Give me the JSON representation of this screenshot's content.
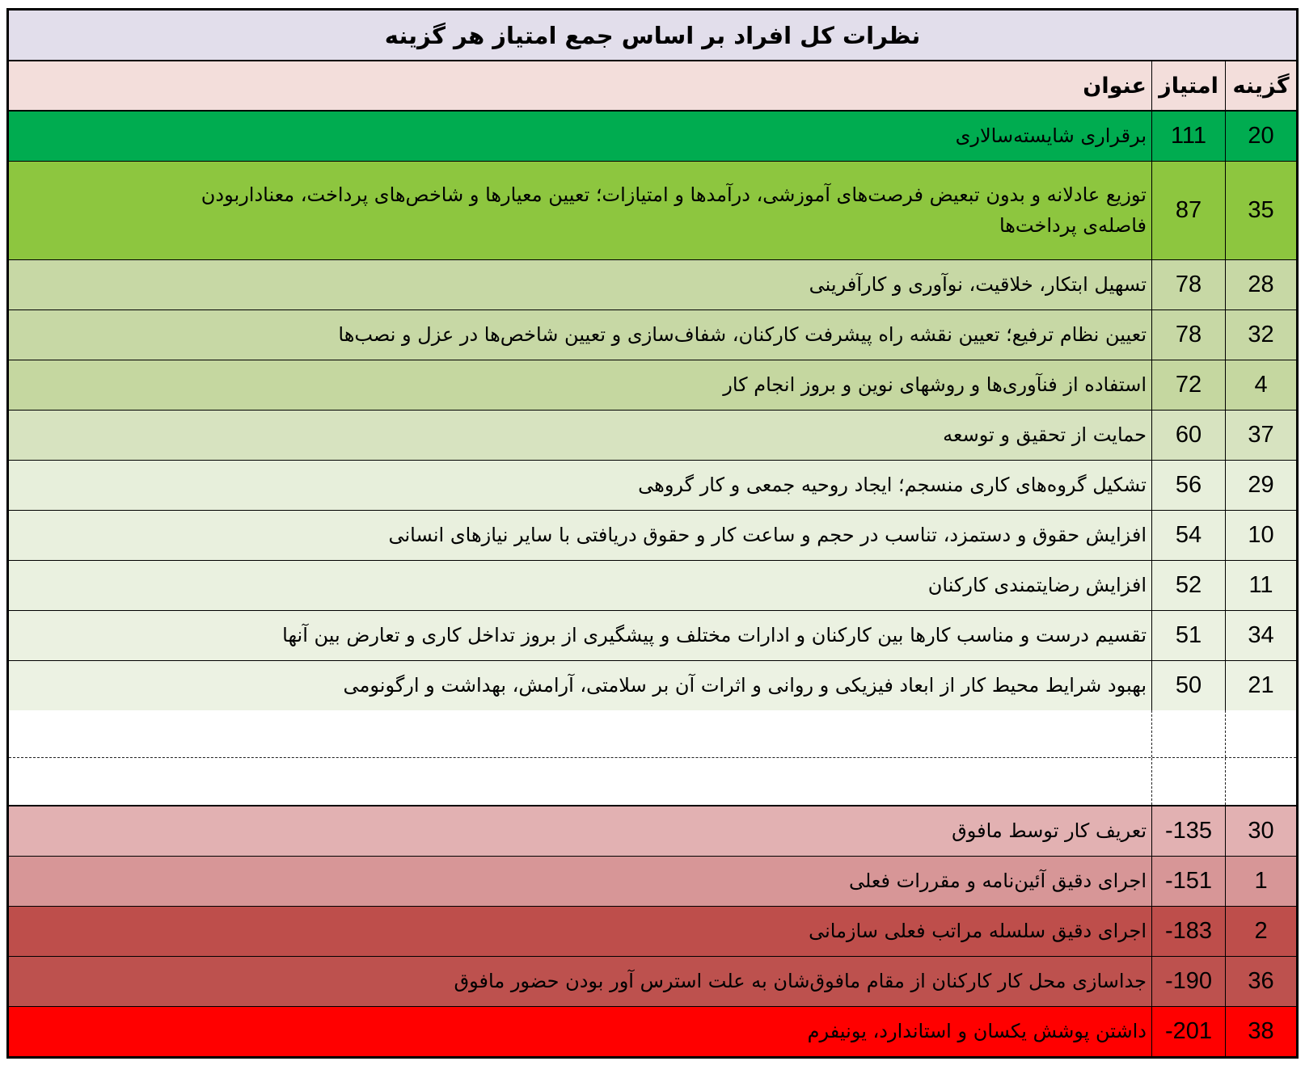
{
  "title": "نظرات کل افراد بر اساس جمع امتیاز هر گزینه",
  "header": {
    "option": "گزینه",
    "score": "امتیاز",
    "label": "عنوان"
  },
  "colors": {
    "title_bg": "#E2DEEB",
    "header_bg": "#F3DEDB",
    "border": "#000000",
    "top_green": "#00AC50",
    "bottom_red": "#FF0000"
  },
  "rows": [
    {
      "section": "top",
      "option": "20",
      "score": "111",
      "label": "برقراری شایسته‌سالاری",
      "bg": "#00AC50",
      "fg": "#000000"
    },
    {
      "section": "top",
      "option": "35",
      "score": "87",
      "label": "توزیع عادلانه و بدون تبعیض فرصت‌های آموزشی، درآمدها و امتیازات؛ تعیین معیارها و شاخص‌های پرداخت، معناداربودن\nفاصله‌ی پرداخت‌ها",
      "bg": "#8DC63F",
      "fg": "#000000",
      "tall": true
    },
    {
      "section": "top",
      "option": "28",
      "score": "78",
      "label": "تسهیل ابتکار، خلاقیت، نوآوری و کارآفرینی",
      "bg": "#C7D8A5",
      "fg": "#000000"
    },
    {
      "section": "top",
      "option": "32",
      "score": "78",
      "label": "تعیین نظام ترفیع؛ تعیین نقشه راه پیشرفت کارکنان، شفاف‌سازی و تعیین شاخص‌ها در عزل و نصب‌ها",
      "bg": "#C7D8A5",
      "fg": "#000000"
    },
    {
      "section": "top",
      "option": "4",
      "score": "72",
      "label": "استفاده از فنآوری‌ها و روشهای نوین و بروز انجام کار",
      "bg": "#C5D7A0",
      "fg": "#000000"
    },
    {
      "section": "top",
      "option": "37",
      "score": "60",
      "label": "حمایت از تحقیق و توسعه",
      "bg": "#D7E3C0",
      "fg": "#000000"
    },
    {
      "section": "top",
      "option": "29",
      "score": "56",
      "label": "تشکیل گروه‌های کاری منسجم؛ ایجاد روحیه جمعی و کار گروهی",
      "bg": "#E7EFDB",
      "fg": "#000000"
    },
    {
      "section": "top",
      "option": "10",
      "score": "54",
      "label": "افزایش حقوق و دستمزد، تناسب در حجم و ساعت کار و حقوق دریافتی با سایر نیازهای انسانی",
      "bg": "#E9F0DE",
      "fg": "#000000"
    },
    {
      "section": "top",
      "option": "11",
      "score": "52",
      "label": "افزایش رضایتمندی کارکنان",
      "bg": "#EAF1E0",
      "fg": "#000000"
    },
    {
      "section": "top",
      "option": "34",
      "score": "51",
      "label": "تقسیم درست و مناسب کارها بین کارکنان و ادارات مختلف و پیشگیری از بروز تداخل کاری و تعارض بین آنها",
      "bg": "#EBF1E1",
      "fg": "#000000"
    },
    {
      "section": "top",
      "option": "21",
      "score": "50",
      "label": "بهبود شرایط محیط کار از ابعاد فیزیکی و روانی و اثرات آن بر سلامتی، آرامش، بهداشت و ارگونومی",
      "bg": "#ECF2E3",
      "fg": "#000000"
    },
    {
      "section": "bottom",
      "option": "30",
      "score": "-135",
      "label": "تعریف کار توسط مافوق",
      "bg": "#E2B1B2",
      "fg": "#000000"
    },
    {
      "section": "bottom",
      "option": "1",
      "score": "-151",
      "label": "اجرای دقیق آئین‌نامه و مقررات فعلی",
      "bg": "#D79697",
      "fg": "#000000"
    },
    {
      "section": "bottom",
      "option": "2",
      "score": "-183",
      "label": "اجرای دقیق سلسله مراتب فعلی سازمانی",
      "bg": "#BE4E4B",
      "fg": "#000000"
    },
    {
      "section": "bottom",
      "option": "36",
      "score": "-190",
      "label": "جداسازی محل کار کارکنان از مقام مافوق‌شان به علت استرس آور بودن حضور مافوق",
      "bg": "#BD514E",
      "fg": "#000000"
    },
    {
      "section": "bottom",
      "option": "38",
      "score": "-201",
      "label": "داشتن پوشش یکسان و استاندارد، یونیفرم",
      "bg": "#FF0000",
      "fg": "#000000"
    }
  ],
  "chart_data": {
    "type": "table",
    "title": "نظرات کل افراد بر اساس جمع امتیاز هر گزینه",
    "columns": [
      "گزینه",
      "امتیاز",
      "عنوان"
    ],
    "categories": [
      20,
      35,
      28,
      32,
      4,
      37,
      29,
      10,
      11,
      34,
      21,
      30,
      1,
      2,
      36,
      38
    ],
    "values": [
      111,
      87,
      78,
      78,
      72,
      60,
      56,
      54,
      52,
      51,
      50,
      -135,
      -151,
      -183,
      -190,
      -201
    ],
    "labels": [
      "برقراری شایسته‌سالاری",
      "توزیع عادلانه و بدون تبعیض فرصت‌های آموزشی، درآمدها و امتیازات؛ تعیین معیارها و شاخص‌های پرداخت، معناداربودن فاصله‌ی پرداخت‌ها",
      "تسهیل ابتکار، خلاقیت، نوآوری و کارآفرینی",
      "تعیین نظام ترفیع؛ تعیین نقشه راه پیشرفت کارکنان، شفاف‌سازی و تعیین شاخص‌ها در عزل و نصب‌ها",
      "استفاده از فنآوری‌ها و روشهای نوین و بروز انجام کار",
      "حمایت از تحقیق و توسعه",
      "تشکیل گروه‌های کاری منسجم؛ ایجاد روحیه جمعی و کار گروهی",
      "افزایش حقوق و دستمزد، تناسب در حجم و ساعت کار و حقوق دریافتی با سایر نیازهای انسانی",
      "افزایش رضایتمندی کارکنان",
      "تقسیم درست و مناسب کارها بین کارکنان و ادارات مختلف و پیشگیری از بروز تداخل کاری و تعارض بین آنها",
      "بهبود شرایط محیط کار از ابعاد فیزیکی و روانی و اثرات آن بر سلامتی، آرامش، بهداشت و ارگونومی",
      "تعریف کار توسط مافوق",
      "اجرای دقیق آئین‌نامه و مقررات فعلی",
      "اجرای دقیق سلسله مراتب فعلی سازمانی",
      "جداسازی محل کار کارکنان از مقام مافوق‌شان به علت استرس آور بودن حضور مافوق",
      "داشتن پوشش یکسان و استاندارد، یونیفرم"
    ],
    "layout_hints": "rows sorted by score descending; conditional color scale green (high) to red (low); middle rows omitted and shown as blank gap with dash-dot rule"
  }
}
